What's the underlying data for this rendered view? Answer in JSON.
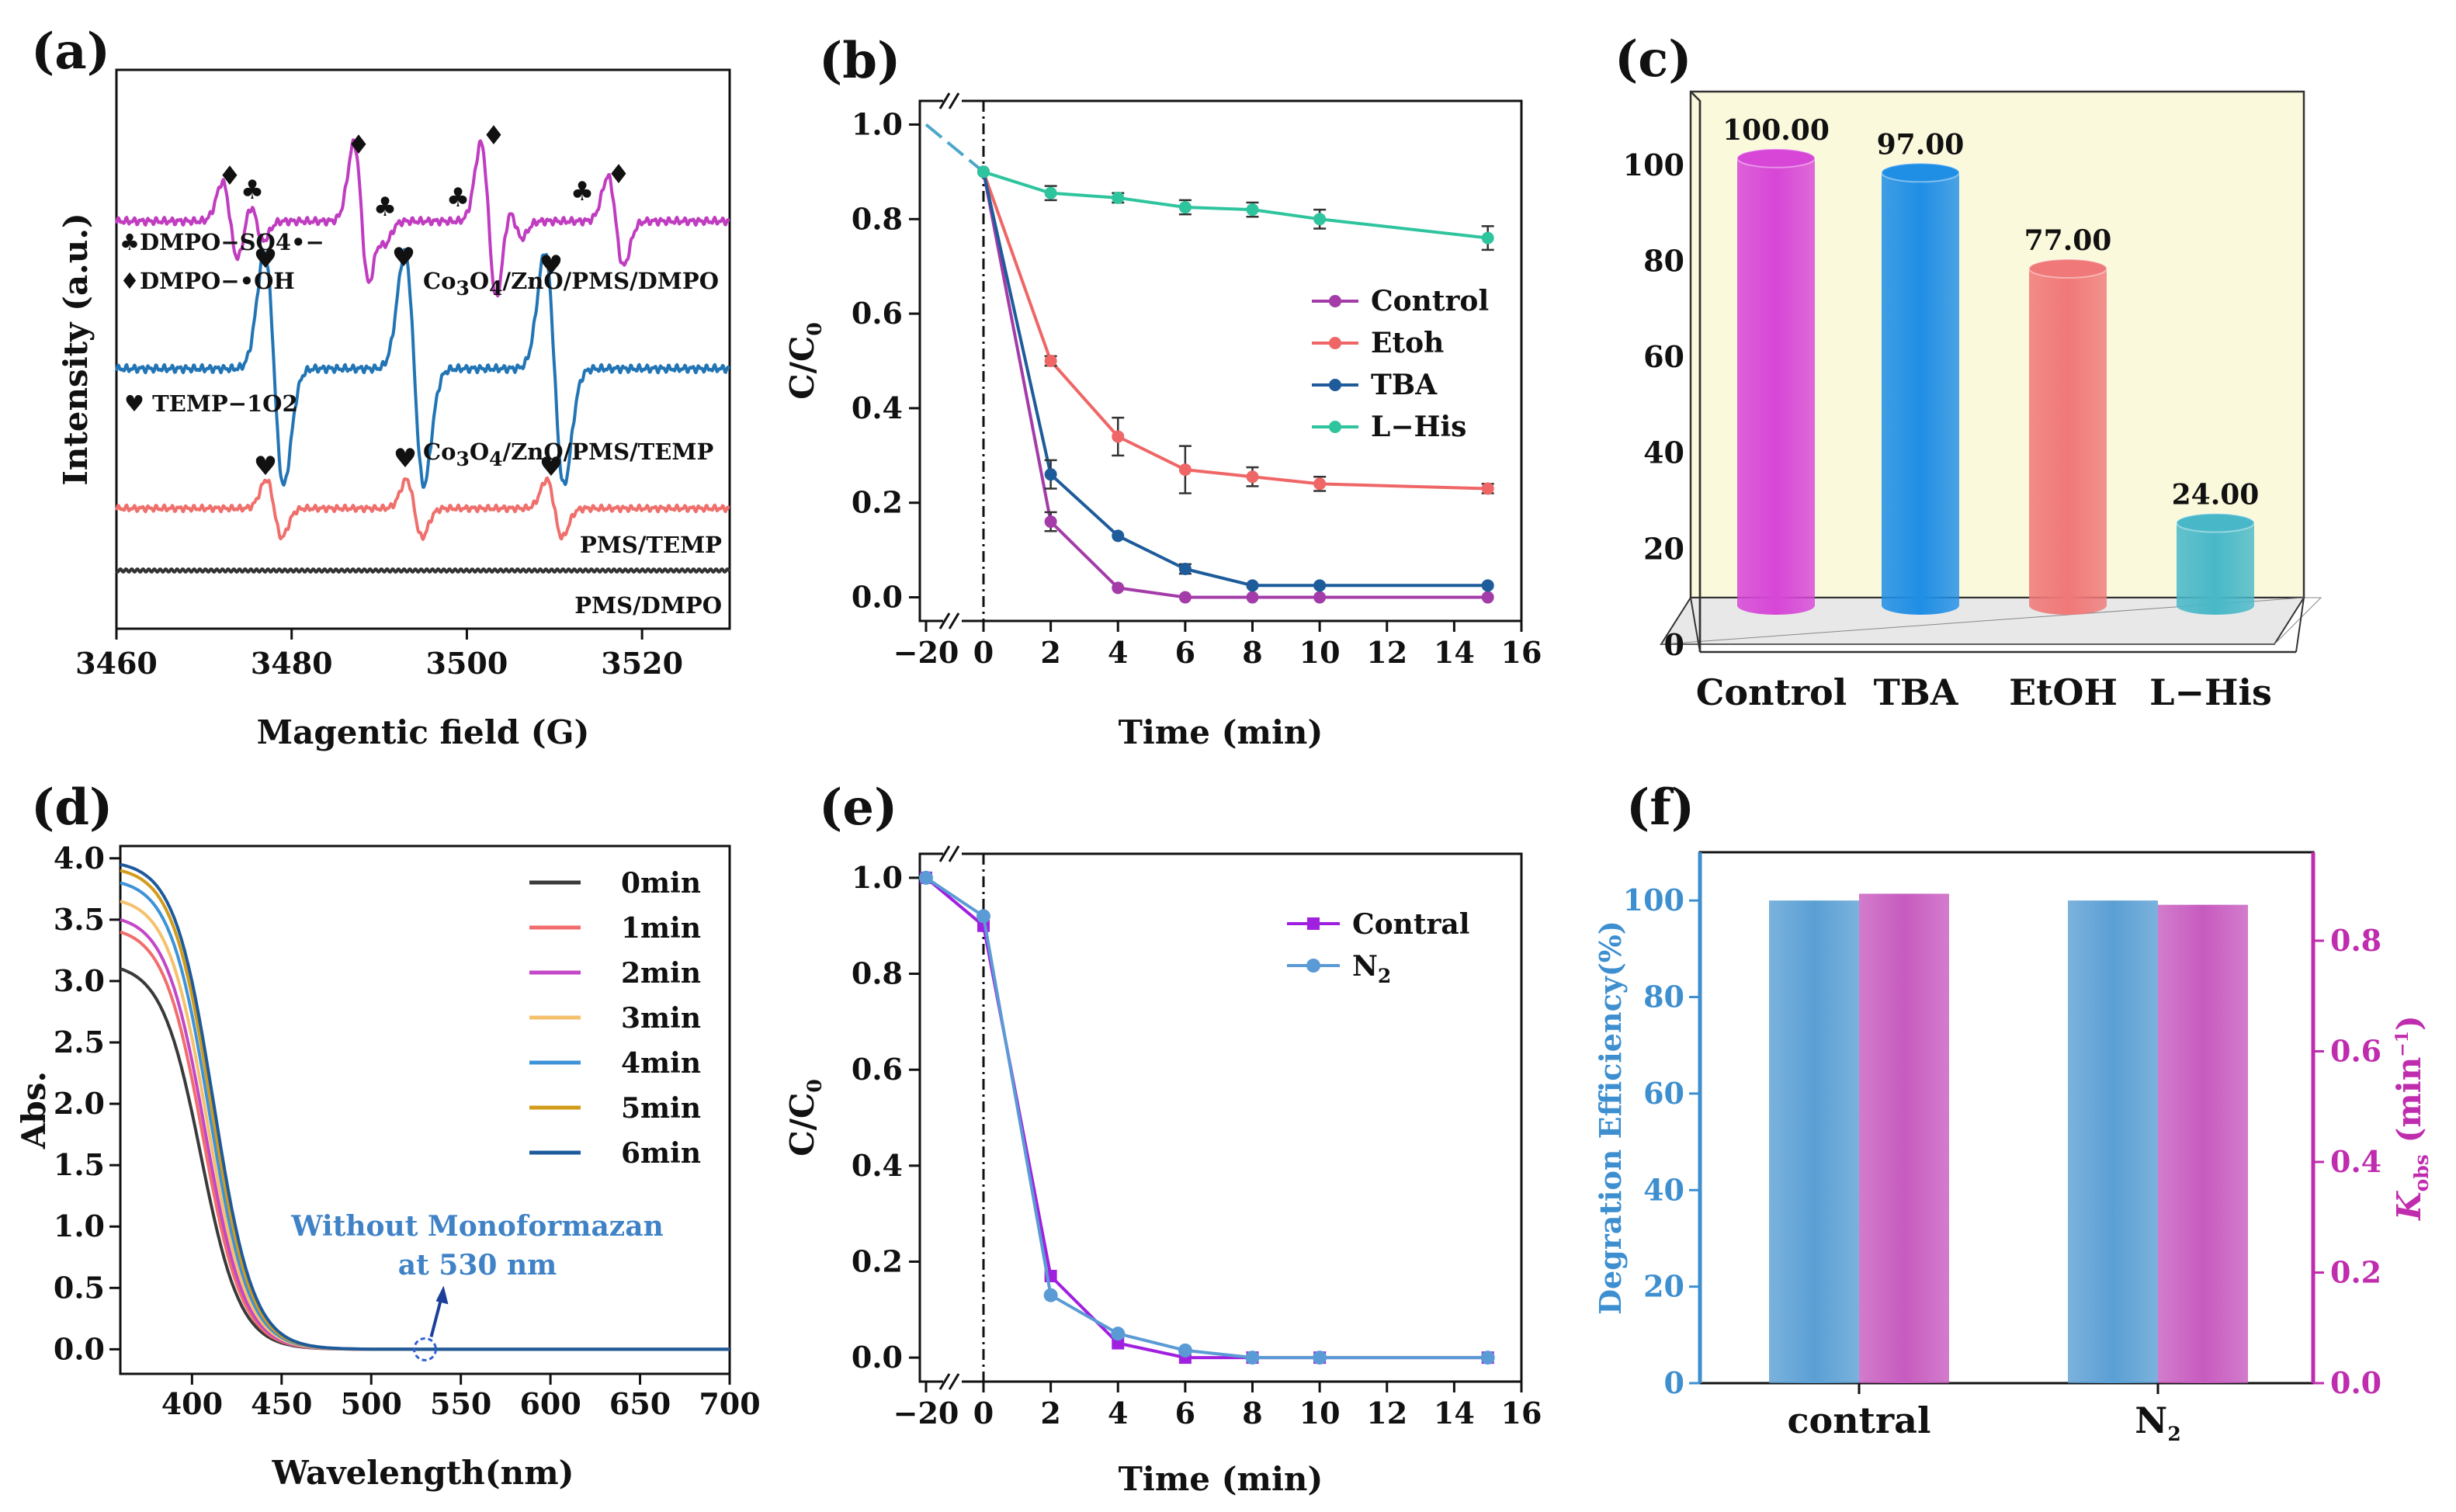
{
  "chart_data": [
    {
      "panel": "(a)",
      "type": "line",
      "xlabel": "Magentic field (G)",
      "ylabel": "Intensity (a.u.)",
      "xlim": [
        3460,
        3530
      ],
      "xticks": [
        3460,
        3480,
        3500,
        3520
      ],
      "traces": [
        {
          "name": "Co3O4/ZnO/PMS/DMPO",
          "color": "#c03cc0",
          "offset": 5.3,
          "peaks": [
            {
              "x": 3473,
              "a": 0.7,
              "s": 0.9
            },
            {
              "x": 3476,
              "a": 0.35,
              "s": 0.8
            },
            {
              "x": 3488,
              "a": 1.4,
              "s": 0.9
            },
            {
              "x": 3490,
              "a": 0.35,
              "s": 0.8
            },
            {
              "x": 3502.5,
              "a": 1.4,
              "s": 0.9
            },
            {
              "x": 3505.5,
              "a": 0.3,
              "s": 0.8
            },
            {
              "x": 3517,
              "a": 0.8,
              "s": 0.9
            }
          ]
        },
        {
          "name": "Co3O4/ZnO/PMS/TEMP",
          "color": "#2275b5",
          "offset": 3.3,
          "peaks": [
            {
              "x": 3478,
              "a": 2.0,
              "s": 1.1
            },
            {
              "x": 3494,
              "a": 2.0,
              "s": 1.1
            },
            {
              "x": 3510,
              "a": 2.0,
              "s": 1.1
            }
          ]
        },
        {
          "name": "PMS/TEMP",
          "color": "#ef6f6c",
          "offset": 1.0,
          "peaks": [
            {
              "x": 3478,
              "a": 0.6,
              "s": 0.9
            },
            {
              "x": 3494,
              "a": 0.6,
              "s": 0.9
            },
            {
              "x": 3510,
              "a": 0.6,
              "s": 0.9
            }
          ]
        },
        {
          "name": "PMS/DMPO",
          "color": "#333333",
          "offset": 0.0,
          "peaks": []
        }
      ],
      "annotations": [
        "DMPO−SO4•−",
        "DMPO−•OH",
        "TEMP−1O2"
      ],
      "trace_labels": [
        "Co",
        "3",
        "O",
        "4",
        "/ZnO/PMS/DMPO",
        "/ZnO/PMS/TEMP",
        "PMS/TEMP",
        "PMS/DMPO"
      ],
      "symbols": {
        "diamond": "♦",
        "club": "♣",
        "heart": "♥"
      },
      "legend_keys": {
        "club": "♣",
        "diamond": "♦",
        "heart": "♥"
      }
    },
    {
      "panel": "(b)",
      "type": "line",
      "xlabel": "Time (min)",
      "ylabel": "C/C0",
      "xlim": [
        -20,
        16
      ],
      "ylim": [
        -0.05,
        1.05
      ],
      "xticks": [
        -20,
        0,
        2,
        4,
        6,
        8,
        10,
        12,
        14,
        16
      ],
      "yticks": [
        "0.0",
        "0.2",
        "0.4",
        "0.6",
        "0.8",
        "1.0"
      ],
      "series": [
        {
          "name": "Control",
          "color": "#a33ca8",
          "x": [
            0,
            2,
            4,
            6,
            8,
            10,
            15
          ],
          "y": [
            0.9,
            0.16,
            0.02,
            0.0,
            0.0,
            0.0,
            0.0
          ],
          "err": [
            0,
            0.02,
            0,
            0,
            0,
            0,
            0
          ]
        },
        {
          "name": "Etoh",
          "color": "#ef6666",
          "x": [
            0,
            2,
            4,
            6,
            8,
            10,
            15
          ],
          "y": [
            0.9,
            0.5,
            0.34,
            0.27,
            0.255,
            0.24,
            0.23
          ],
          "err": [
            0,
            0.01,
            0.04,
            0.05,
            0.02,
            0.015,
            0.01
          ]
        },
        {
          "name": "TBA",
          "color": "#1d5b9a",
          "x": [
            0,
            2,
            4,
            6,
            8,
            10,
            15
          ],
          "y": [
            0.9,
            0.26,
            0.13,
            0.06,
            0.025,
            0.025,
            0.025
          ],
          "err": [
            0,
            0.03,
            0,
            0.01,
            0,
            0,
            0
          ]
        },
        {
          "name": "L−His",
          "color": "#2ec49e",
          "x": [
            0,
            2,
            4,
            6,
            8,
            10,
            15
          ],
          "y": [
            0.9,
            0.855,
            0.845,
            0.825,
            0.82,
            0.8,
            0.76
          ],
          "err": [
            0,
            0.015,
            0.01,
            0.015,
            0.015,
            0.02,
            0.025
          ]
        }
      ],
      "pre_segment": {
        "x": [
          -20,
          0
        ],
        "y": [
          1.0,
          0.9
        ]
      }
    },
    {
      "panel": "(c)",
      "type": "bar",
      "categories": [
        "Control",
        "TBA",
        "EtOH",
        "L−His"
      ],
      "values": [
        100,
        97,
        77,
        24
      ],
      "labels": [
        "100.00",
        "97.00",
        "77.00",
        "24.00"
      ],
      "ylim": [
        0,
        110
      ],
      "yticks": [
        "0",
        "20",
        "40",
        "60",
        "80",
        "100"
      ],
      "colors": [
        "#d746d7",
        "#1f8ee5",
        "#f07878",
        "#48b8c8"
      ]
    },
    {
      "panel": "(d)",
      "type": "line",
      "xlabel": "Wavelength(nm)",
      "ylabel": "Abs.",
      "xlim": [
        360,
        700
      ],
      "ylim": [
        -0.2,
        4.1
      ],
      "xticks": [
        400,
        450,
        500,
        550,
        600,
        650,
        700
      ],
      "yticks": [
        "0.0",
        "0.5",
        "1.0",
        "1.5",
        "2.0",
        "2.5",
        "3.0",
        "3.5",
        "4.0"
      ],
      "series": [
        {
          "name": "0min",
          "color": "#3a3a3a",
          "a0": 3.1
        },
        {
          "name": "1min",
          "color": "#f26d6d",
          "a0": 3.4
        },
        {
          "name": "2min",
          "color": "#c347c7",
          "a0": 3.5
        },
        {
          "name": "3min",
          "color": "#f5c16c",
          "a0": 3.65
        },
        {
          "name": "4min",
          "color": "#3e93d8",
          "a0": 3.8
        },
        {
          "name": "5min",
          "color": "#d39b1a",
          "a0": 3.9
        },
        {
          "name": "6min",
          "color": "#1d5a9c",
          "a0": 3.95
        }
      ],
      "annotation": [
        "Without Monoformazan",
        "at 530 nm"
      ],
      "marker_x": 530
    },
    {
      "panel": "(e)",
      "type": "line",
      "xlabel": "Time (min)",
      "ylabel": "C/C0",
      "xlim": [
        -20,
        16
      ],
      "ylim": [
        -0.05,
        1.05
      ],
      "xticks": [
        -20,
        0,
        2,
        4,
        6,
        8,
        10,
        12,
        14,
        16
      ],
      "yticks": [
        "0.0",
        "0.2",
        "0.4",
        "0.6",
        "0.8",
        "1.0"
      ],
      "series": [
        {
          "name": "Contral",
          "color": "#a020e0",
          "marker": "square",
          "x": [
            -20,
            0,
            2,
            4,
            6,
            8,
            10,
            15
          ],
          "y": [
            1.0,
            0.9,
            0.17,
            0.03,
            0.0,
            0.0,
            0.0,
            0.0
          ]
        },
        {
          "name": "N2",
          "color": "#5b9bd5",
          "marker": "circle",
          "x": [
            -20,
            0,
            2,
            4,
            6,
            8,
            10,
            15
          ],
          "y": [
            1.0,
            0.92,
            0.13,
            0.05,
            0.015,
            0.0,
            0.0,
            0.0
          ]
        }
      ]
    },
    {
      "panel": "(f)",
      "type": "bar",
      "categories": [
        "contral",
        "N2"
      ],
      "series": [
        {
          "name": "Degration Efficiency(%)",
          "axis": "left",
          "color": "#5a9fd4",
          "values": [
            100,
            100
          ]
        },
        {
          "name": "Kobs (min−1)",
          "axis": "right",
          "color": "#c75bbf",
          "values": [
            0.885,
            0.865
          ]
        }
      ],
      "yleft": {
        "label": "Degration Efficiency(%)",
        "lim": [
          0,
          110
        ],
        "ticks": [
          "0",
          "20",
          "40",
          "60",
          "80",
          "100"
        ],
        "color": "#3d8fd0"
      },
      "yright": {
        "label": "Kobs (min−1)",
        "lim": [
          0,
          0.96
        ],
        "ticks": [
          "0.0",
          "0.2",
          "0.4",
          "0.6",
          "0.8"
        ],
        "color": "#c02cae"
      }
    }
  ],
  "panel_labels": [
    "(a)",
    "(b)",
    "(c)",
    "(d)",
    "(e)",
    "(f)"
  ]
}
